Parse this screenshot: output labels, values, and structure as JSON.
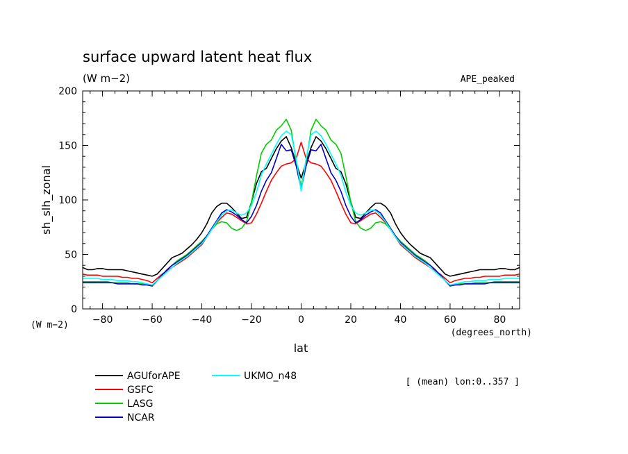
{
  "chart_data": {
    "type": "line",
    "title": "surface upward latent heat flux",
    "subtitle": "(W m−2)",
    "experiment": "APE_peaked",
    "ylabel": "sh_slh_zonal",
    "y_unit": "(W m−2)",
    "xlabel": "lat",
    "x_unit": "(degrees_north)",
    "note": "[ (mean) lon:0..357 ]",
    "xlim": [
      -88,
      88
    ],
    "ylim": [
      0,
      200
    ],
    "xticks": [
      -80,
      -60,
      -40,
      -20,
      0,
      20,
      40,
      60,
      80
    ],
    "yticks": [
      0,
      50,
      100,
      150,
      200
    ],
    "grid": false,
    "legend_position": "bottom-left",
    "x": [
      -88,
      -86,
      -84,
      -82,
      -80,
      -78,
      -76,
      -74,
      -72,
      -70,
      -68,
      -66,
      -64,
      -62,
      -60,
      -58,
      -56,
      -54,
      -52,
      -50,
      -48,
      -46,
      -44,
      -42,
      -40,
      -38,
      -36,
      -34,
      -32,
      -30,
      -28,
      -26,
      -24,
      -22,
      -20,
      -18,
      -16,
      -14,
      -12,
      -10,
      -8,
      -6,
      -4,
      -2,
      0,
      2,
      4,
      6,
      8,
      10,
      12,
      14,
      16,
      18,
      20,
      22,
      24,
      26,
      28,
      30,
      32,
      34,
      36,
      38,
      40,
      42,
      44,
      46,
      48,
      50,
      52,
      54,
      56,
      58,
      60,
      62,
      64,
      66,
      68,
      70,
      72,
      74,
      76,
      78,
      80,
      82,
      84,
      86,
      88
    ],
    "series": [
      {
        "name": "AGUforAPE",
        "color": "#000000",
        "values": [
          38,
          36,
          36,
          37,
          37,
          36,
          36,
          36,
          36,
          35,
          34,
          33,
          32,
          31,
          30,
          32,
          37,
          42,
          47,
          49,
          51,
          55,
          59,
          64,
          70,
          78,
          88,
          94,
          97,
          97,
          93,
          88,
          83,
          84,
          98,
          115,
          126,
          129,
          138,
          147,
          154,
          158,
          148,
          134,
          120,
          134,
          148,
          158,
          154,
          147,
          138,
          129,
          126,
          115,
          98,
          84,
          83,
          88,
          93,
          97,
          97,
          94,
          88,
          78,
          70,
          64,
          59,
          55,
          51,
          49,
          47,
          42,
          37,
          32,
          30,
          31,
          32,
          33,
          34,
          35,
          36,
          36,
          36,
          36,
          37,
          37,
          36,
          36,
          38
        ]
      },
      {
        "name": "GSFC",
        "color": "#ff0000",
        "values": [
          32,
          31,
          31,
          31,
          30,
          30,
          30,
          30,
          29,
          29,
          28,
          28,
          27,
          26,
          24,
          28,
          32,
          35,
          38,
          41,
          44,
          47,
          51,
          55,
          59,
          66,
          73,
          79,
          84,
          88,
          87,
          84,
          81,
          78,
          79,
          87,
          97,
          108,
          118,
          125,
          131,
          133,
          134,
          138,
          153,
          138,
          134,
          133,
          131,
          125,
          118,
          108,
          97,
          87,
          79,
          78,
          81,
          84,
          87,
          88,
          84,
          79,
          73,
          66,
          59,
          55,
          51,
          47,
          44,
          41,
          38,
          35,
          32,
          28,
          24,
          26,
          27,
          28,
          28,
          29,
          29,
          30,
          30,
          30,
          30,
          31,
          31,
          31,
          32
        ]
      },
      {
        "name": "LASG",
        "color": "#00cc00",
        "values": [
          25,
          25,
          25,
          25,
          25,
          25,
          24,
          24,
          24,
          24,
          23,
          23,
          23,
          22,
          21,
          26,
          31,
          36,
          40,
          44,
          47,
          50,
          54,
          58,
          62,
          67,
          73,
          78,
          80,
          79,
          74,
          72,
          74,
          80,
          98,
          122,
          143,
          151,
          155,
          164,
          168,
          174,
          164,
          135,
          112,
          135,
          164,
          174,
          168,
          164,
          155,
          151,
          143,
          122,
          98,
          80,
          74,
          72,
          74,
          79,
          80,
          78,
          73,
          67,
          62,
          58,
          54,
          50,
          47,
          44,
          40,
          36,
          31,
          26,
          21,
          22,
          23,
          23,
          23,
          24,
          24,
          24,
          24,
          25,
          25,
          25,
          25,
          25,
          25
        ]
      },
      {
        "name": "NCAR",
        "color": "#0000cc",
        "values": [
          24,
          24,
          24,
          24,
          24,
          24,
          24,
          23,
          23,
          23,
          23,
          23,
          22,
          22,
          21,
          26,
          31,
          36,
          40,
          43,
          46,
          49,
          53,
          57,
          61,
          67,
          74,
          81,
          88,
          91,
          89,
          86,
          82,
          79,
          85,
          95,
          108,
          118,
          125,
          138,
          151,
          145,
          146,
          131,
          110,
          131,
          146,
          145,
          151,
          138,
          125,
          118,
          108,
          95,
          85,
          79,
          82,
          86,
          89,
          91,
          88,
          81,
          74,
          67,
          61,
          57,
          53,
          49,
          46,
          43,
          40,
          36,
          31,
          26,
          21,
          22,
          22,
          23,
          23,
          23,
          23,
          23,
          24,
          24,
          24,
          24,
          24,
          24,
          24
        ]
      },
      {
        "name": "UKMO_n48",
        "color": "#00ffff",
        "values": [
          28,
          28,
          28,
          28,
          27,
          27,
          27,
          26,
          26,
          26,
          25,
          25,
          24,
          23,
          22,
          26,
          30,
          34,
          38,
          42,
          45,
          48,
          52,
          56,
          60,
          66,
          73,
          80,
          86,
          90,
          91,
          88,
          86,
          88,
          95,
          107,
          123,
          133,
          142,
          151,
          159,
          163,
          160,
          138,
          108,
          138,
          160,
          163,
          159,
          151,
          142,
          133,
          123,
          107,
          95,
          88,
          86,
          88,
          91,
          90,
          86,
          80,
          73,
          66,
          60,
          56,
          52,
          48,
          45,
          42,
          38,
          34,
          30,
          26,
          22,
          23,
          24,
          25,
          25,
          26,
          26,
          26,
          27,
          27,
          27,
          28,
          28,
          28,
          28
        ]
      }
    ]
  }
}
